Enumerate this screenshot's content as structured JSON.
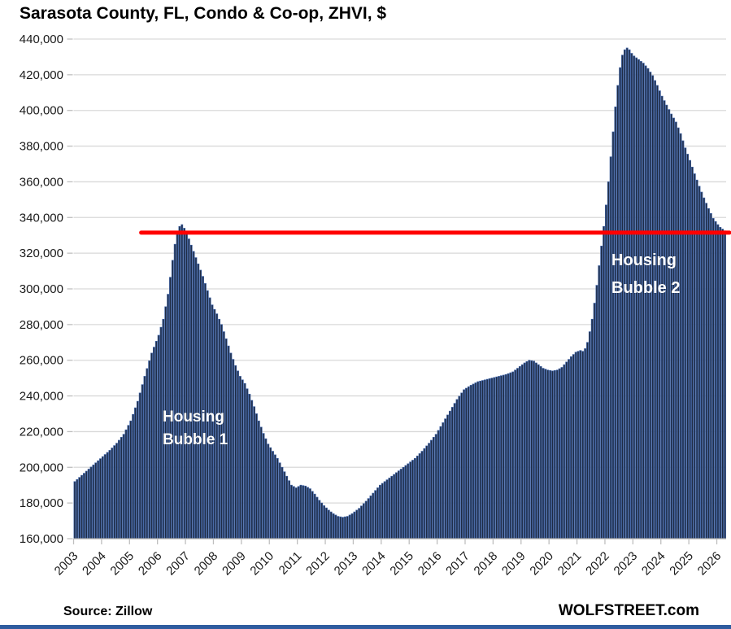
{
  "header": {
    "title": "Sarasota County, FL, Condo & Co-op, ZHVI, $"
  },
  "footer": {
    "source": "Source: Zillow",
    "brand": "WOLFSTREET.com"
  },
  "annotations": {
    "bubble1_line1": "Housing",
    "bubble1_line2": "Bubble 1",
    "bubble2_line1": "Housing",
    "bubble2_line2": "Bubble 2"
  },
  "colors": {
    "bar_fill": "#1F2C44",
    "bar_border": "#3E62A5",
    "reference_line": "#FF0000",
    "gridline": "#D9D9D9",
    "axis": "#ABABAB",
    "tick": "#BFBFBF",
    "label_text": "#1a1a1a",
    "bottom_strip": "#2f5c9f"
  },
  "chart_data": {
    "type": "bar",
    "title": "Sarasota County, FL, Condo & Co-op, ZHVI, $",
    "xlabel": "",
    "ylabel": "ZHVI, $",
    "x_unit": "month",
    "x_range": [
      "2003-01",
      "2026-04"
    ],
    "x_tick_years": [
      2003,
      2004,
      2005,
      2006,
      2007,
      2008,
      2009,
      2010,
      2011,
      2012,
      2013,
      2014,
      2015,
      2016,
      2017,
      2018,
      2019,
      2020,
      2021,
      2022,
      2023,
      2024,
      2025,
      2026
    ],
    "ylim": [
      160000,
      440000
    ],
    "y_tick_step": 20000,
    "y_tick_labels": [
      "160,000",
      "180,000",
      "200,000",
      "220,000",
      "240,000",
      "260,000",
      "280,000",
      "300,000",
      "320,000",
      "340,000",
      "360,000",
      "380,000",
      "400,000",
      "420,000",
      "440,000"
    ],
    "grid": true,
    "legend": "none",
    "reference_line": {
      "value": 331500,
      "start": "2005-06",
      "meaning": "Housing Bubble 1 peak level"
    },
    "series": [
      {
        "name": "Condo & Co-op ZHVI, $",
        "interpolation": "linear-monthly-between-keypoints",
        "keypoints": [
          [
            "2003-01",
            192000
          ],
          [
            "2003-04",
            195500
          ],
          [
            "2003-07",
            199000
          ],
          [
            "2003-10",
            202500
          ],
          [
            "2004-01",
            206000
          ],
          [
            "2004-04",
            209500
          ],
          [
            "2004-07",
            213500
          ],
          [
            "2004-10",
            218500
          ],
          [
            "2005-01",
            226000
          ],
          [
            "2005-04",
            237000
          ],
          [
            "2005-07",
            251000
          ],
          [
            "2005-10",
            264000
          ],
          [
            "2006-01",
            274000
          ],
          [
            "2006-03",
            283000
          ],
          [
            "2006-05",
            297000
          ],
          [
            "2006-07",
            316000
          ],
          [
            "2006-08",
            325000
          ],
          [
            "2006-09",
            331500
          ],
          [
            "2006-10",
            335000
          ],
          [
            "2006-11",
            336000
          ],
          [
            "2006-12",
            334000
          ],
          [
            "2007-01",
            331000
          ],
          [
            "2007-02",
            328000
          ],
          [
            "2007-04",
            321000
          ],
          [
            "2007-06",
            314000
          ],
          [
            "2007-08",
            307000
          ],
          [
            "2007-10",
            299000
          ],
          [
            "2007-12",
            291000
          ],
          [
            "2008-02",
            286000
          ],
          [
            "2008-04",
            280000
          ],
          [
            "2008-06",
            272000
          ],
          [
            "2008-08",
            264000
          ],
          [
            "2008-10",
            257000
          ],
          [
            "2008-12",
            251000
          ],
          [
            "2009-02",
            247000
          ],
          [
            "2009-04",
            241000
          ],
          [
            "2009-06",
            234000
          ],
          [
            "2009-08",
            226000
          ],
          [
            "2009-10",
            219000
          ],
          [
            "2009-12",
            213000
          ],
          [
            "2010-02",
            209000
          ],
          [
            "2010-04",
            205000
          ],
          [
            "2010-06",
            200000
          ],
          [
            "2010-08",
            195000
          ],
          [
            "2010-10",
            190000
          ],
          [
            "2010-12",
            188500
          ],
          [
            "2011-02",
            190000
          ],
          [
            "2011-04",
            189500
          ],
          [
            "2011-06",
            188000
          ],
          [
            "2011-08",
            185000
          ],
          [
            "2011-10",
            181500
          ],
          [
            "2011-12",
            178500
          ],
          [
            "2012-02",
            176000
          ],
          [
            "2012-04",
            174000
          ],
          [
            "2012-06",
            172500
          ],
          [
            "2012-08",
            172000
          ],
          [
            "2012-10",
            172500
          ],
          [
            "2012-12",
            174000
          ],
          [
            "2013-03",
            177000
          ],
          [
            "2013-06",
            181000
          ],
          [
            "2013-09",
            185500
          ],
          [
            "2013-12",
            190000
          ],
          [
            "2014-03",
            193000
          ],
          [
            "2014-06",
            196000
          ],
          [
            "2014-09",
            199000
          ],
          [
            "2014-12",
            202000
          ],
          [
            "2015-03",
            205000
          ],
          [
            "2015-06",
            209000
          ],
          [
            "2015-09",
            213500
          ],
          [
            "2015-12",
            218500
          ],
          [
            "2016-03",
            225000
          ],
          [
            "2016-06",
            231500
          ],
          [
            "2016-09",
            238000
          ],
          [
            "2016-12",
            243500
          ],
          [
            "2017-03",
            246000
          ],
          [
            "2017-06",
            248000
          ],
          [
            "2017-09",
            249000
          ],
          [
            "2017-12",
            250000
          ],
          [
            "2018-03",
            251000
          ],
          [
            "2018-06",
            252000
          ],
          [
            "2018-09",
            253500
          ],
          [
            "2018-12",
            256500
          ],
          [
            "2019-02",
            258500
          ],
          [
            "2019-04",
            260000
          ],
          [
            "2019-06",
            259500
          ],
          [
            "2019-08",
            257500
          ],
          [
            "2019-10",
            255500
          ],
          [
            "2019-12",
            254500
          ],
          [
            "2020-02",
            254000
          ],
          [
            "2020-04",
            254500
          ],
          [
            "2020-06",
            256000
          ],
          [
            "2020-08",
            259000
          ],
          [
            "2020-10",
            262000
          ],
          [
            "2020-12",
            264500
          ],
          [
            "2021-02",
            265500
          ],
          [
            "2021-03",
            265000
          ],
          [
            "2021-04",
            266500
          ],
          [
            "2021-05",
            270000
          ],
          [
            "2021-06",
            276000
          ],
          [
            "2021-07",
            283000
          ],
          [
            "2021-08",
            292000
          ],
          [
            "2021-09",
            302000
          ],
          [
            "2021-10",
            313000
          ],
          [
            "2021-11",
            324000
          ],
          [
            "2021-12",
            335000
          ],
          [
            "2022-01",
            347000
          ],
          [
            "2022-02",
            360000
          ],
          [
            "2022-03",
            374000
          ],
          [
            "2022-04",
            388000
          ],
          [
            "2022-05",
            402000
          ],
          [
            "2022-06",
            414000
          ],
          [
            "2022-07",
            424000
          ],
          [
            "2022-08",
            431000
          ],
          [
            "2022-09",
            434000
          ],
          [
            "2022-10",
            435000
          ],
          [
            "2022-11",
            434000
          ],
          [
            "2022-12",
            432000
          ],
          [
            "2023-01",
            430500
          ],
          [
            "2023-03",
            428500
          ],
          [
            "2023-05",
            426500
          ],
          [
            "2023-07",
            423500
          ],
          [
            "2023-09",
            419500
          ],
          [
            "2023-11",
            414000
          ],
          [
            "2024-01",
            408000
          ],
          [
            "2024-03",
            403000
          ],
          [
            "2024-05",
            398000
          ],
          [
            "2024-07",
            393500
          ],
          [
            "2024-09",
            387000
          ],
          [
            "2024-11",
            379000
          ],
          [
            "2025-01",
            372000
          ],
          [
            "2025-03",
            364500
          ],
          [
            "2025-05",
            357500
          ],
          [
            "2025-07",
            351000
          ],
          [
            "2025-09",
            345000
          ],
          [
            "2025-11",
            339500
          ],
          [
            "2026-01",
            336000
          ],
          [
            "2026-02",
            334500
          ],
          [
            "2026-03",
            333500
          ],
          [
            "2026-04",
            332500
          ]
        ]
      }
    ],
    "annotations": [
      "Housing Bubble 1",
      "Housing Bubble 2"
    ]
  }
}
